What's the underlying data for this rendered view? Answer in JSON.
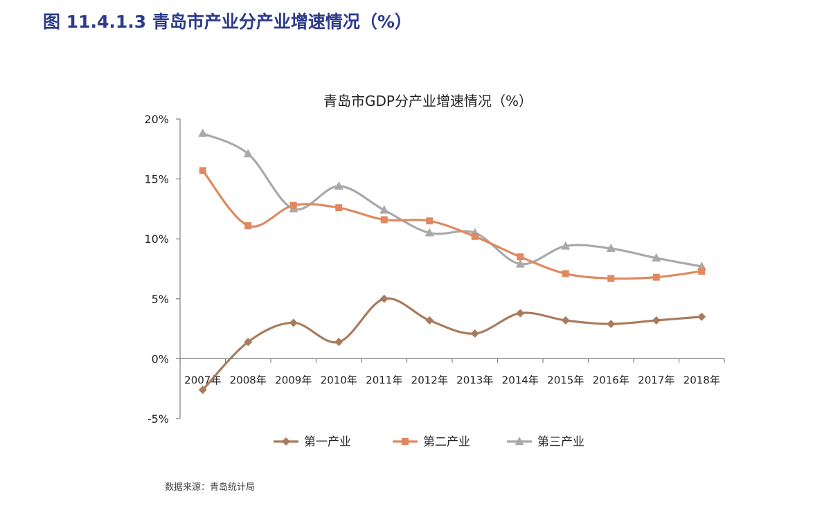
{
  "figure_title": "图 11.4.1.3 青岛市产业分产业增速情况（%）",
  "source": "数据来源：青岛统计局",
  "chart_data": {
    "type": "line",
    "title": "青岛市GDP分产业增速情况（%）",
    "categories": [
      "2007年",
      "2008年",
      "2009年",
      "2010年",
      "2011年",
      "2012年",
      "2013年",
      "2014年",
      "2015年",
      "2016年",
      "2017年",
      "2018年"
    ],
    "ylim": [
      -5,
      20
    ],
    "yticks": [
      -5,
      0,
      5,
      10,
      15,
      20
    ],
    "ytick_labels": [
      "-5%",
      "0%",
      "5%",
      "10%",
      "15%",
      "20%"
    ],
    "grid": false,
    "legend_position": "bottom",
    "smooth": true,
    "series": [
      {
        "name": "第一产业",
        "color": "#a97b5c",
        "marker": "diamond",
        "values": [
          -2.6,
          1.4,
          3.0,
          1.4,
          5.0,
          3.2,
          2.1,
          3.8,
          3.2,
          2.9,
          3.2,
          3.5
        ]
      },
      {
        "name": "第二产业",
        "color": "#e08860",
        "marker": "square",
        "values": [
          15.7,
          11.1,
          12.8,
          12.6,
          11.6,
          11.5,
          10.2,
          8.5,
          7.1,
          6.7,
          6.8,
          7.3
        ]
      },
      {
        "name": "第三产业",
        "color": "#a9a9a9",
        "marker": "triangle",
        "values": [
          18.8,
          17.1,
          12.5,
          14.4,
          12.4,
          10.5,
          10.5,
          7.9,
          9.4,
          9.2,
          8.4,
          7.7
        ]
      }
    ]
  }
}
